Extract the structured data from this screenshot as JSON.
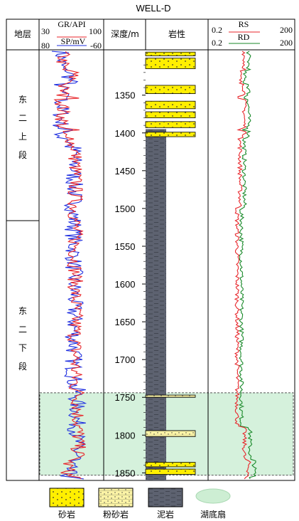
{
  "well_name": "WELL-D",
  "headers": {
    "formation": "地层",
    "depth": "深度/m",
    "lithology": "岩性"
  },
  "gr": {
    "label": "GR/API",
    "min": "30",
    "max": "100",
    "color": "#e8262b"
  },
  "sp": {
    "label": "SP/mV",
    "min": "80",
    "max": "-60",
    "color": "#1f2fe0"
  },
  "rs": {
    "label": "RS",
    "min": "0.2",
    "max": "200",
    "color": "#e8262b"
  },
  "rd": {
    "label": "RD",
    "min": "0.2",
    "max": "200",
    "color": "#1a8a2a"
  },
  "zones": [
    {
      "chars": [
        "东",
        "二",
        "上",
        "段"
      ],
      "top": 1290,
      "bottom": 1535
    },
    {
      "chars": [
        "东",
        "二",
        "下",
        "段"
      ],
      "top": 1535,
      "bottom": 1860
    }
  ],
  "depth_ticks": [
    1350,
    1400,
    1450,
    1500,
    1550,
    1600,
    1650,
    1700,
    1750,
    1800,
    1850
  ],
  "depth_range": [
    1290,
    1860
  ],
  "sandstone_beds": [
    [
      1293,
      1298
    ],
    [
      1301,
      1315
    ],
    [
      1337,
      1348
    ],
    [
      1358,
      1368
    ],
    [
      1372,
      1380
    ],
    [
      1385,
      1393
    ],
    [
      1399,
      1405
    ],
    [
      1836,
      1842
    ],
    [
      1845,
      1852
    ]
  ],
  "siltstone_beds": [
    [
      1747,
      1750
    ],
    [
      1794,
      1802
    ]
  ],
  "fan_interval": {
    "top": 1744,
    "bottom": 1853
  },
  "legend": [
    {
      "key": "sandstone",
      "label": "砂岩"
    },
    {
      "key": "siltstone",
      "label": "粉砂岩"
    },
    {
      "key": "mudstone",
      "label": "泥岩"
    },
    {
      "key": "fan",
      "label": "湖底扇"
    }
  ]
}
